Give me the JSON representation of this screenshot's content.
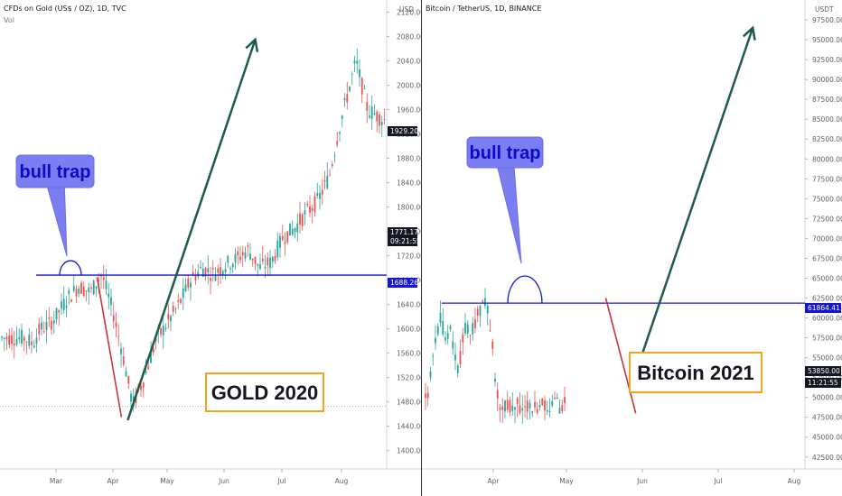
{
  "chart_data": [
    {
      "type": "candlestick",
      "title": "CFDs on Gold (US$ / OZ), 1D, TVC",
      "subtitle": "Vol",
      "currency_label": "USD",
      "y_ticks": [
        "2120.00",
        "2080.00",
        "2040.00",
        "2000.00",
        "1960.00",
        "1920.00",
        "1880.00",
        "1840.00",
        "1800.00",
        "1760.00",
        "1720.00",
        "1680.00",
        "1640.00",
        "1600.00",
        "1560.00",
        "1520.00",
        "1480.00",
        "1440.00",
        "1400.00"
      ],
      "x_ticks": [
        "Mar",
        "Apr",
        "May",
        "Jun",
        "Jul",
        "Aug"
      ],
      "ylim": [
        1370,
        2140
      ],
      "price_tags": [
        {
          "label": "1929.20",
          "color": "#131722"
        },
        {
          "label": "1771.17",
          "color": "#131722"
        },
        {
          "label": "09:21:55",
          "color": "#131722"
        },
        {
          "label": "1688.26",
          "color": "#1515d6"
        }
      ],
      "horizontal_level": 1688.26,
      "dotted_level": 1473,
      "callout": "bull trap",
      "box_label": "GOLD 2020",
      "path_x": [
        0.06,
        0.08,
        0.1,
        0.12,
        0.14,
        0.17,
        0.2,
        0.23,
        0.26,
        0.29,
        0.31,
        0.34,
        0.37,
        0.4,
        0.43,
        0.46,
        0.49,
        0.52,
        0.55,
        0.58,
        0.61,
        0.64,
        0.67,
        0.7,
        0.73,
        0.76,
        0.79,
        0.82,
        0.85,
        0.88,
        0.9,
        0.92,
        0.95,
        1.0
      ],
      "path_y": [
        1585,
        1575,
        1600,
        1605,
        1620,
        1650,
        1670,
        1660,
        1690,
        1625,
        1570,
        1475,
        1520,
        1580,
        1610,
        1640,
        1680,
        1700,
        1690,
        1705,
        1715,
        1730,
        1700,
        1710,
        1750,
        1765,
        1790,
        1810,
        1850,
        1940,
        1990,
        2040,
        1960,
        1940
      ],
      "arrows": [
        {
          "from": [
            1.26,
            1450
          ],
          "to": [
            3.5,
            2075
          ],
          "color": "#1e5c4a"
        }
      ],
      "red_line": {
        "from": [
          0.72,
          1685
        ],
        "to": [
          1.15,
          1455
        ],
        "color": "#c8333e"
      }
    },
    {
      "type": "candlestick",
      "title": "Bitcoin / TetherUS, 1D, BINANCE",
      "currency_label": "USDT",
      "y_ticks": [
        "97500.00",
        "95000.00",
        "92500.00",
        "90000.00",
        "87500.00",
        "85000.00",
        "82500.00",
        "80000.00",
        "77500.00",
        "75000.00",
        "72500.00",
        "70000.00",
        "67500.00",
        "65000.00",
        "62500.00",
        "60000.00",
        "57500.00",
        "55000.00",
        "52500.00",
        "50000.00",
        "47500.00",
        "45000.00",
        "42500.00"
      ],
      "x_ticks": [
        "Apr",
        "May",
        "Jun",
        "Jul",
        "Aug"
      ],
      "ylim": [
        41000,
        100000
      ],
      "price_tags": [
        {
          "label": "61864.41",
          "color": "#1515d6"
        },
        {
          "label": "53850.00",
          "color": "#131722"
        },
        {
          "label": "11:21:55",
          "color": "#131722"
        }
      ],
      "horizontal_level": 61864.41,
      "callout": "bull trap",
      "box_label": "Bitcoin 2021",
      "path_x": [
        0.02,
        0.05,
        0.08,
        0.11,
        0.14,
        0.17,
        0.2,
        0.23,
        0.26,
        0.29,
        0.32,
        0.35,
        0.38,
        0.41,
        0.44,
        0.47,
        0.5,
        0.53
      ],
      "path_y": [
        50000,
        55000,
        58000,
        60000,
        57000,
        59000,
        56000,
        53000,
        57000,
        59000,
        58500,
        59500,
        60500,
        63500,
        61000,
        57000,
        51000,
        49000
      ],
      "arrows": [
        {
          "from": [
            1.88,
            52500
          ],
          "to": [
            3.46,
            96500
          ],
          "color": "#1e5c4a"
        }
      ],
      "red_line": {
        "from": [
          1.5,
          62500
        ],
        "to": [
          1.9,
          48000
        ],
        "color": "#c8333e"
      }
    }
  ]
}
